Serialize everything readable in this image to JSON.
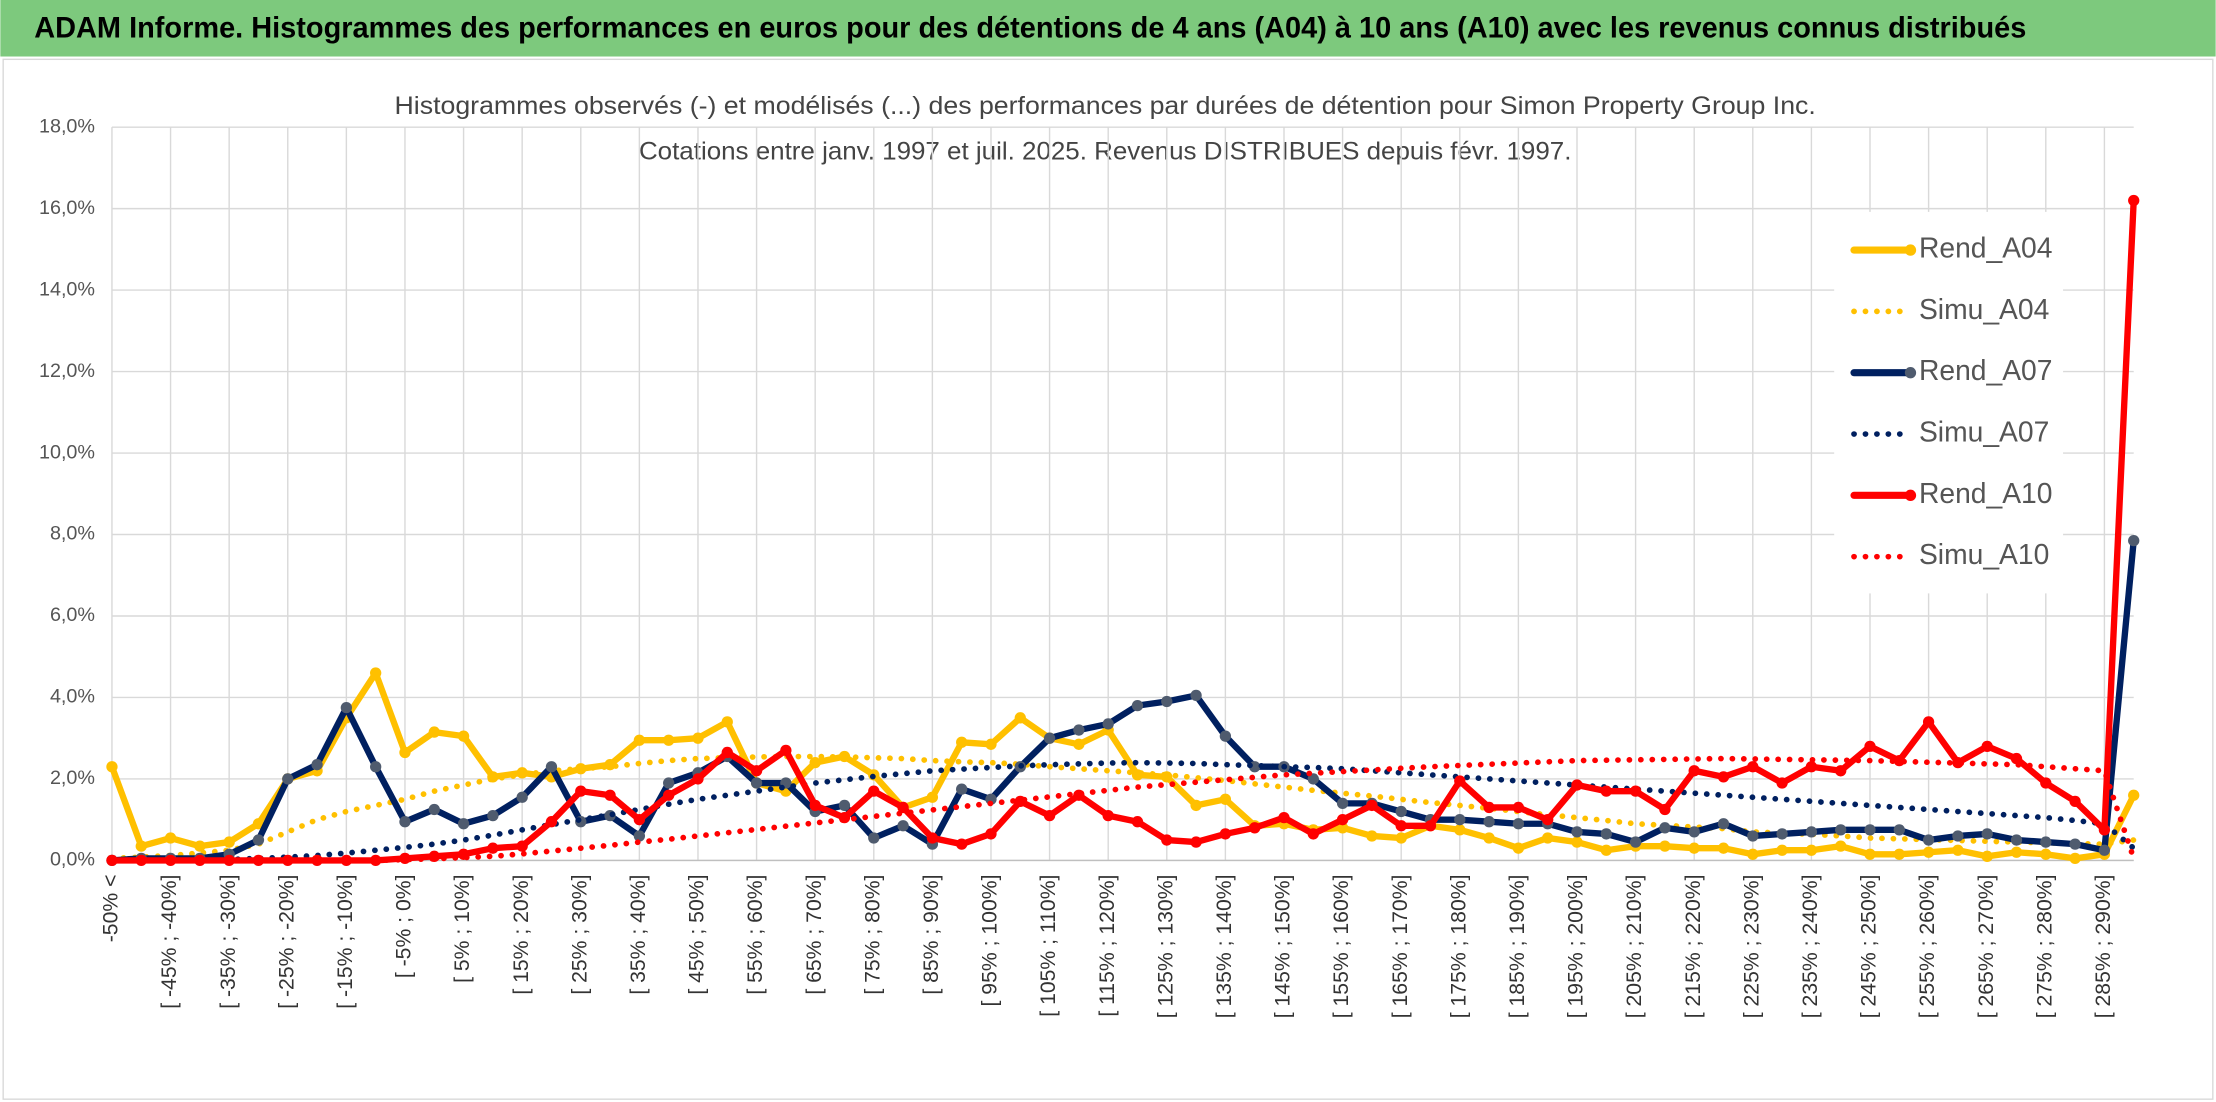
{
  "header": {
    "title": "ADAM Informe. Histogrammes des performances en euros pour des détentions de 4 ans (A04) à 10 ans (A10) avec les revenus connus distribués"
  },
  "chart_data": {
    "type": "line",
    "title": "Histogrammes observés (-) et modélisés (...) des performances par durées de détention pour Simon Property Group Inc.",
    "subtitle": "Cotations entre janv. 1997 et juil. 2025. Revenus DISTRIBUES depuis févr. 1997.",
    "categories": [
      "-50% <",
      null,
      "[ -45% ; -40%]",
      null,
      "[ -35% ; -30%]",
      null,
      "[ -25% ; -20%]",
      null,
      "[ -15% ; -10%]",
      null,
      "[ -5% ; 0%]",
      null,
      "[ 5% ; 10%]",
      null,
      "[ 15% ; 20%]",
      null,
      "[ 25% ; 30%]",
      null,
      "[ 35% ; 40%]",
      null,
      "[ 45% ; 50%]",
      null,
      "[ 55% ; 60%]",
      null,
      "[ 65% ; 70%]",
      null,
      "[ 75% ; 80%]",
      null,
      "[ 85% ; 90%]",
      null,
      "[ 95% ; 100%]",
      null,
      "[ 105% ; 110%]",
      null,
      "[ 115% ; 120%]",
      null,
      "[ 125% ; 130%]",
      null,
      "[ 135% ; 140%]",
      null,
      "[ 145% ; 150%]",
      null,
      "[ 155% ; 160%]",
      null,
      "[ 165% ; 170%]",
      null,
      "[ 175% ; 180%]",
      null,
      "[ 185% ; 190%]",
      null,
      "[ 195% ; 200%]",
      null,
      "[ 205% ; 210%]",
      null,
      "[ 215% ; 220%]",
      null,
      "[ 225% ; 230%]",
      null,
      "[ 235% ; 240%]",
      null,
      "[ 245% ; 250%]",
      null,
      "[ 255% ; 260%]",
      null,
      "[ 265% ; 270%]",
      null,
      "[ 275% ; 280%]",
      null,
      "[ 285% ; 290%]",
      null
    ],
    "ylim": [
      0,
      18
    ],
    "yticks": [
      {
        "value": 0,
        "label": "0,0%"
      },
      {
        "value": 2,
        "label": "2,0%"
      },
      {
        "value": 4,
        "label": "4,0%"
      },
      {
        "value": 6,
        "label": "6,0%"
      },
      {
        "value": 8,
        "label": "8,0%"
      },
      {
        "value": 10,
        "label": "10,0%"
      },
      {
        "value": 12,
        "label": "12,0%"
      },
      {
        "value": 14,
        "label": "14,0%"
      },
      {
        "value": 16,
        "label": "16,0%"
      },
      {
        "value": 18,
        "label": "18,0%"
      }
    ],
    "grid": true,
    "legend": "right",
    "series": [
      {
        "name": "Rend_A04",
        "color": "#ffc000",
        "line_style": "solid",
        "markers": true,
        "values": [
          2.3,
          0.35,
          0.55,
          0.35,
          0.45,
          0.9,
          2.0,
          2.2,
          3.5,
          4.6,
          2.65,
          3.15,
          3.05,
          2.05,
          2.15,
          2.05,
          2.25,
          2.35,
          2.95,
          2.95,
          3.0,
          3.4,
          1.9,
          1.7,
          2.4,
          2.55,
          2.1,
          1.3,
          1.55,
          2.9,
          2.85,
          3.5,
          3.0,
          2.85,
          3.2,
          2.1,
          2.05,
          1.35,
          1.5,
          0.85,
          0.9,
          0.75,
          0.8,
          0.6,
          0.55,
          0.85,
          0.75,
          0.55,
          0.3,
          0.55,
          0.45,
          0.25,
          0.35,
          0.35,
          0.3,
          0.3,
          0.15,
          0.25,
          0.25,
          0.35,
          0.15,
          0.15,
          0.2,
          0.25,
          0.1,
          0.2,
          0.15,
          0.05,
          0.15,
          1.6
        ]
      },
      {
        "name": "Simu_A04",
        "color": "#ffc000",
        "line_style": "dotted",
        "markers": false,
        "values": [
          0.05,
          0.08,
          0.12,
          0.18,
          0.25,
          0.4,
          0.7,
          1.0,
          1.2,
          1.35,
          1.5,
          1.7,
          1.85,
          2.0,
          2.1,
          2.2,
          2.25,
          2.3,
          2.38,
          2.45,
          2.5,
          2.52,
          2.54,
          2.55,
          2.55,
          2.54,
          2.52,
          2.5,
          2.45,
          2.42,
          2.4,
          2.36,
          2.3,
          2.25,
          2.2,
          2.15,
          2.1,
          2.03,
          1.96,
          1.88,
          1.8,
          1.72,
          1.65,
          1.58,
          1.5,
          1.42,
          1.35,
          1.28,
          1.2,
          1.12,
          1.05,
          0.98,
          0.9,
          0.86,
          0.82,
          0.78,
          0.7,
          0.67,
          0.64,
          0.6,
          0.55,
          0.53,
          0.51,
          0.49,
          0.47,
          0.45,
          0.43,
          0.41,
          0.4,
          0.5
        ]
      },
      {
        "name": "Rend_A07",
        "color": "#002060",
        "line_style": "solid",
        "markers": true,
        "values": [
          0,
          0.05,
          0.05,
          0.05,
          0.15,
          0.5,
          2.0,
          2.35,
          3.75,
          2.3,
          0.95,
          1.25,
          0.9,
          1.1,
          1.55,
          2.3,
          0.95,
          1.1,
          0.6,
          1.9,
          2.15,
          2.55,
          1.9,
          1.9,
          1.2,
          1.35,
          0.55,
          0.85,
          0.4,
          1.75,
          1.5,
          2.3,
          3.0,
          3.2,
          3.35,
          3.8,
          3.9,
          4.05,
          3.05,
          2.3,
          2.3,
          2.0,
          1.4,
          1.4,
          1.2,
          1.0,
          1.0,
          0.95,
          0.9,
          0.9,
          0.7,
          0.65,
          0.45,
          0.8,
          0.7,
          0.9,
          0.6,
          0.65,
          0.7,
          0.75,
          0.75,
          0.75,
          0.5,
          0.6,
          0.65,
          0.5,
          0.45,
          0.4,
          0.25,
          7.85
        ]
      },
      {
        "name": "Simu_A07",
        "color": "#002060",
        "line_style": "dotted",
        "markers": false,
        "values": [
          0,
          0,
          0,
          0,
          0.02,
          0.05,
          0.08,
          0.12,
          0.18,
          0.25,
          0.32,
          0.4,
          0.5,
          0.62,
          0.75,
          0.88,
          1.0,
          1.12,
          1.25,
          1.38,
          1.5,
          1.6,
          1.7,
          1.8,
          1.9,
          1.98,
          2.06,
          2.13,
          2.2,
          2.24,
          2.28,
          2.32,
          2.35,
          2.37,
          2.39,
          2.4,
          2.39,
          2.38,
          2.35,
          2.33,
          2.3,
          2.28,
          2.25,
          2.2,
          2.15,
          2.1,
          2.05,
          2.0,
          1.95,
          1.9,
          1.85,
          1.8,
          1.75,
          1.7,
          1.65,
          1.6,
          1.55,
          1.5,
          1.45,
          1.4,
          1.35,
          1.3,
          1.25,
          1.2,
          1.15,
          1.1,
          1.05,
          0.98,
          0.9,
          0.3
        ]
      },
      {
        "name": "Rend_A10",
        "color": "#ff0000",
        "line_style": "solid",
        "markers": true,
        "values": [
          0,
          0,
          0,
          0,
          0,
          0,
          0,
          0,
          0,
          0,
          0.05,
          0.1,
          0.15,
          0.3,
          0.35,
          0.95,
          1.7,
          1.6,
          1.0,
          1.6,
          2.0,
          2.65,
          2.2,
          2.7,
          1.35,
          1.05,
          1.7,
          1.3,
          0.55,
          0.4,
          0.65,
          1.45,
          1.1,
          1.6,
          1.1,
          0.95,
          0.5,
          0.45,
          0.65,
          0.8,
          1.05,
          0.65,
          1.0,
          1.35,
          0.85,
          0.85,
          1.95,
          1.3,
          1.3,
          1.0,
          1.85,
          1.7,
          1.7,
          1.25,
          2.2,
          2.05,
          2.3,
          1.9,
          2.3,
          2.2,
          2.8,
          2.45,
          3.4,
          2.4,
          2.8,
          2.5,
          1.9,
          1.45,
          0.75,
          16.2
        ]
      },
      {
        "name": "Simu_A10",
        "color": "#ff0000",
        "line_style": "dotted",
        "markers": false,
        "values": [
          0,
          0,
          0,
          0,
          0,
          0,
          0,
          0,
          0,
          0,
          0.02,
          0.04,
          0.07,
          0.1,
          0.16,
          0.23,
          0.3,
          0.37,
          0.45,
          0.52,
          0.6,
          0.68,
          0.76,
          0.84,
          0.92,
          1.0,
          1.08,
          1.16,
          1.24,
          1.32,
          1.4,
          1.48,
          1.56,
          1.64,
          1.72,
          1.8,
          1.86,
          1.92,
          1.98,
          2.04,
          2.1,
          2.14,
          2.18,
          2.22,
          2.26,
          2.3,
          2.33,
          2.36,
          2.39,
          2.42,
          2.45,
          2.46,
          2.47,
          2.48,
          2.49,
          2.5,
          2.49,
          2.48,
          2.47,
          2.46,
          2.45,
          2.43,
          2.41,
          2.39,
          2.37,
          2.35,
          2.3,
          2.25,
          2.2,
          0.05
        ]
      }
    ]
  }
}
